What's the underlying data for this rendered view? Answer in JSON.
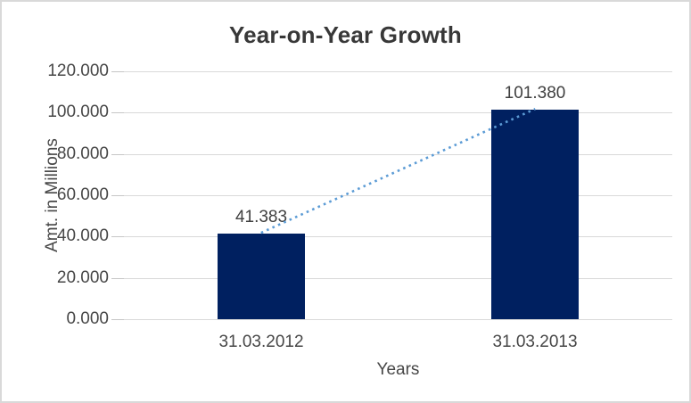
{
  "window": {
    "background": "#FFFFFF",
    "border_color": "#D9D9D9"
  },
  "chart_data": {
    "type": "bar",
    "title": "Year-on-Year Growth",
    "xlabel": "Years",
    "ylabel": "Amt. in Millions",
    "categories": [
      "31.03.2012",
      "31.03.2013"
    ],
    "values": [
      41.383,
      101.38
    ],
    "data_labels": [
      "41.383",
      "101.380"
    ],
    "ylim": [
      0,
      120
    ],
    "ytick_values": [
      0,
      20,
      40,
      60,
      80,
      100,
      120
    ],
    "ytick_labels": [
      "0.000",
      "20.000",
      "40.000",
      "60.000",
      "80.000",
      "100.000",
      "120.000"
    ],
    "grid": true,
    "legend": "none",
    "trendline": {
      "type": "linear",
      "style": "dotted",
      "color": "#5B9BD5"
    },
    "colors": {
      "bar": "#002060",
      "gridline": "#D9D9D9",
      "tick": "#C6C6C6",
      "title_text": "#383838",
      "label_text": "#474747"
    }
  }
}
